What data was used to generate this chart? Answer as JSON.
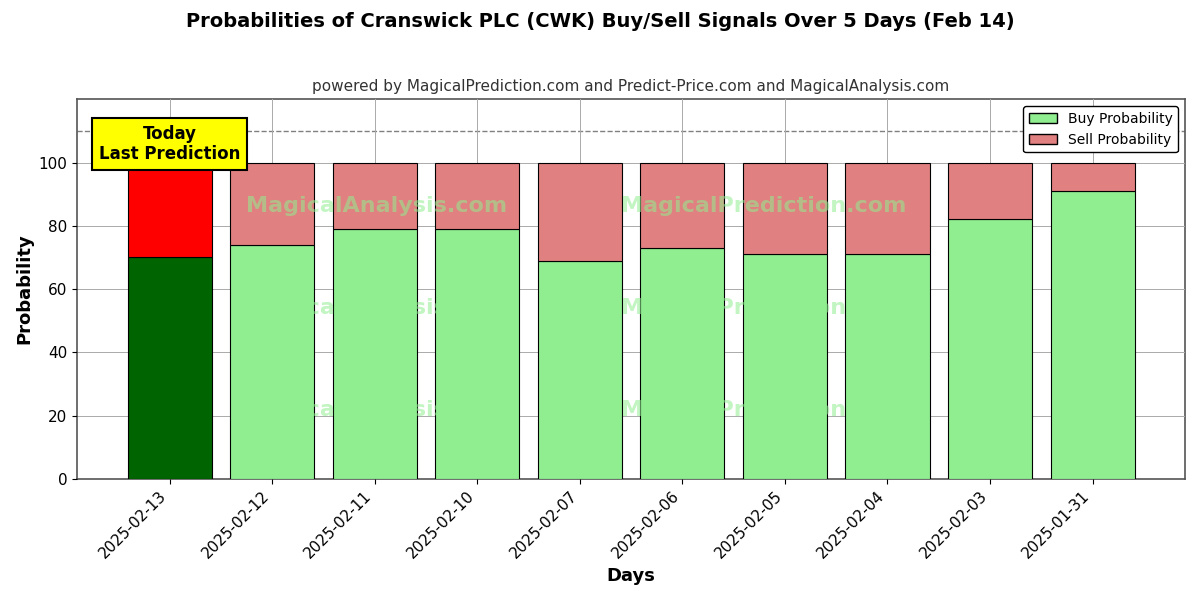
{
  "title": "Probabilities of Cranswick PLC (CWK) Buy/Sell Signals Over 5 Days (Feb 14)",
  "subtitle": "powered by MagicalPrediction.com and Predict-Price.com and MagicalAnalysis.com",
  "xlabel": "Days",
  "ylabel": "Probability",
  "dates": [
    "2025-02-13",
    "2025-02-12",
    "2025-02-11",
    "2025-02-10",
    "2025-02-07",
    "2025-02-06",
    "2025-02-05",
    "2025-02-04",
    "2025-02-03",
    "2025-01-31"
  ],
  "buy_values": [
    70,
    74,
    79,
    79,
    69,
    73,
    71,
    71,
    82,
    91
  ],
  "sell_values": [
    30,
    26,
    21,
    21,
    31,
    27,
    29,
    29,
    18,
    9
  ],
  "today_buy_color": "#006400",
  "today_sell_color": "#FF0000",
  "buy_color": "#90EE90",
  "sell_color": "#E08080",
  "bar_edge_color": "#000000",
  "today_label_bg": "#FFFF00",
  "today_label_text": "Today\nLast Prediction",
  "legend_buy_label": "Buy Probability",
  "legend_sell_label": "Sell Probability",
  "ylim": [
    0,
    120
  ],
  "yticks": [
    0,
    20,
    40,
    60,
    80,
    100
  ],
  "dashed_line_y": 110,
  "background_color": "#ffffff",
  "grid_color": "#aaaaaa",
  "title_fontsize": 14,
  "subtitle_fontsize": 11,
  "axis_label_fontsize": 13,
  "tick_fontsize": 11
}
